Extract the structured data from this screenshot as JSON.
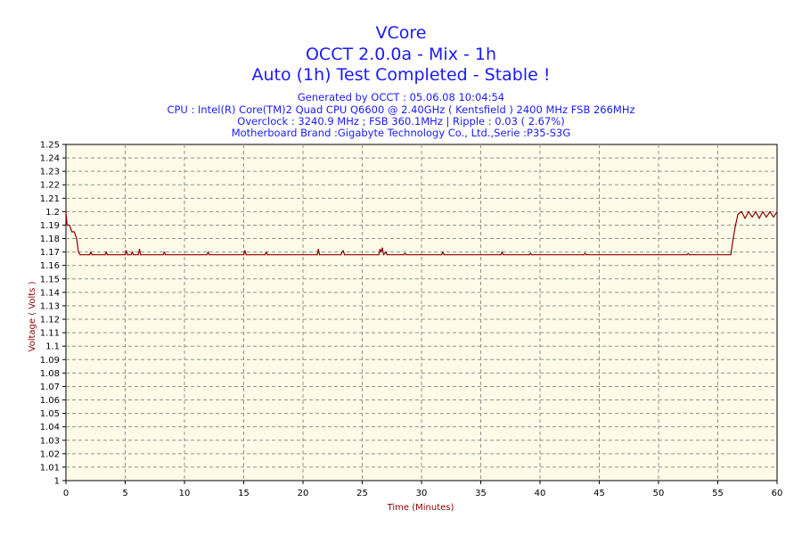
{
  "header": {
    "title": "VCore",
    "subtitle1": "OCCT 2.0.0a - Mix - 1h",
    "subtitle2": "Auto (1h) Test Completed - Stable !",
    "info1": "Generated by OCCT : 05.06.08 10:04:54",
    "info2": "CPU : Intel(R) Core(TM)2 Quad CPU Q6600 @ 2.40GHz ( Kentsfield ) 2400 MHz FSB 266MHz",
    "info3": "Overclock : 3240.9 MHz ; FSB 360.1MHz | Ripple : 0.03 ( 2.67%)",
    "info4": "Motherboard Brand :Gigabyte Technology Co., Ltd.,Serie :P35-S3G"
  },
  "colors": {
    "title": "#1a1aff",
    "plot_background": "#fffbe8",
    "line": "#8b0000",
    "grid": "#909090"
  },
  "chart_data": {
    "type": "line",
    "title": "VCore",
    "xlabel": "Time (Minutes)",
    "ylabel": "Voltage ( Volts )",
    "xlim": [
      0,
      60
    ],
    "ylim": [
      1.0,
      1.25
    ],
    "x_ticks": [
      0,
      5,
      10,
      15,
      20,
      25,
      30,
      35,
      40,
      45,
      50,
      55,
      60
    ],
    "y_ticks": [
      "1",
      "1.01",
      "1.02",
      "1.03",
      "1.04",
      "1.05",
      "1.06",
      "1.07",
      "1.08",
      "1.09",
      "1.1",
      "1.11",
      "1.12",
      "1.13",
      "1.14",
      "1.15",
      "1.16",
      "1.17",
      "1.18",
      "1.19",
      "1.2",
      "1.21",
      "1.22",
      "1.23",
      "1.24",
      "1.25"
    ],
    "grid": true,
    "series": [
      {
        "points": [
          [
            0,
            1.2
          ],
          [
            0.1,
            1.19
          ],
          [
            0.3,
            1.19
          ],
          [
            0.5,
            1.185
          ],
          [
            0.7,
            1.185
          ],
          [
            0.9,
            1.18
          ],
          [
            1.05,
            1.17
          ],
          [
            1.2,
            1.168
          ],
          [
            2,
            1.168
          ],
          [
            2.1,
            1.17
          ],
          [
            2.2,
            1.168
          ],
          [
            3.3,
            1.168
          ],
          [
            3.4,
            1.17
          ],
          [
            3.5,
            1.168
          ],
          [
            5.0,
            1.168
          ],
          [
            5.1,
            1.171
          ],
          [
            5.2,
            1.168
          ],
          [
            5.5,
            1.168
          ],
          [
            5.6,
            1.17
          ],
          [
            5.7,
            1.168
          ],
          [
            6.1,
            1.168
          ],
          [
            6.2,
            1.172
          ],
          [
            6.3,
            1.168
          ],
          [
            8.2,
            1.168
          ],
          [
            8.3,
            1.17
          ],
          [
            8.4,
            1.168
          ],
          [
            11.9,
            1.168
          ],
          [
            12.0,
            1.17
          ],
          [
            12.1,
            1.168
          ],
          [
            15.0,
            1.168
          ],
          [
            15.1,
            1.171
          ],
          [
            15.2,
            1.168
          ],
          [
            16.8,
            1.168
          ],
          [
            16.9,
            1.17
          ],
          [
            17.0,
            1.168
          ],
          [
            21.2,
            1.168
          ],
          [
            21.3,
            1.172
          ],
          [
            21.4,
            1.168
          ],
          [
            23.2,
            1.168
          ],
          [
            23.3,
            1.17
          ],
          [
            23.4,
            1.171
          ],
          [
            23.5,
            1.168
          ],
          [
            26.4,
            1.168
          ],
          [
            26.5,
            1.172
          ],
          [
            26.6,
            1.17
          ],
          [
            26.7,
            1.173
          ],
          [
            26.8,
            1.168
          ],
          [
            27.0,
            1.17
          ],
          [
            27.1,
            1.168
          ],
          [
            28.5,
            1.168
          ],
          [
            28.6,
            1.169
          ],
          [
            28.7,
            1.168
          ],
          [
            31.7,
            1.168
          ],
          [
            31.8,
            1.17
          ],
          [
            31.9,
            1.168
          ],
          [
            36.7,
            1.168
          ],
          [
            36.8,
            1.17
          ],
          [
            36.9,
            1.168
          ],
          [
            39.1,
            1.168
          ],
          [
            39.2,
            1.169
          ],
          [
            39.3,
            1.168
          ],
          [
            43.7,
            1.168
          ],
          [
            43.8,
            1.169
          ],
          [
            43.9,
            1.168
          ],
          [
            52.4,
            1.168
          ],
          [
            52.5,
            1.169
          ],
          [
            52.6,
            1.168
          ],
          [
            56.1,
            1.168
          ],
          [
            56.3,
            1.18
          ],
          [
            56.5,
            1.19
          ],
          [
            56.7,
            1.198
          ],
          [
            57.0,
            1.2
          ],
          [
            57.3,
            1.195
          ],
          [
            57.6,
            1.2
          ],
          [
            57.9,
            1.196
          ],
          [
            58.2,
            1.2
          ],
          [
            58.5,
            1.195
          ],
          [
            58.8,
            1.2
          ],
          [
            59.1,
            1.196
          ],
          [
            59.4,
            1.2
          ],
          [
            59.7,
            1.196
          ],
          [
            60,
            1.2
          ]
        ]
      }
    ]
  }
}
